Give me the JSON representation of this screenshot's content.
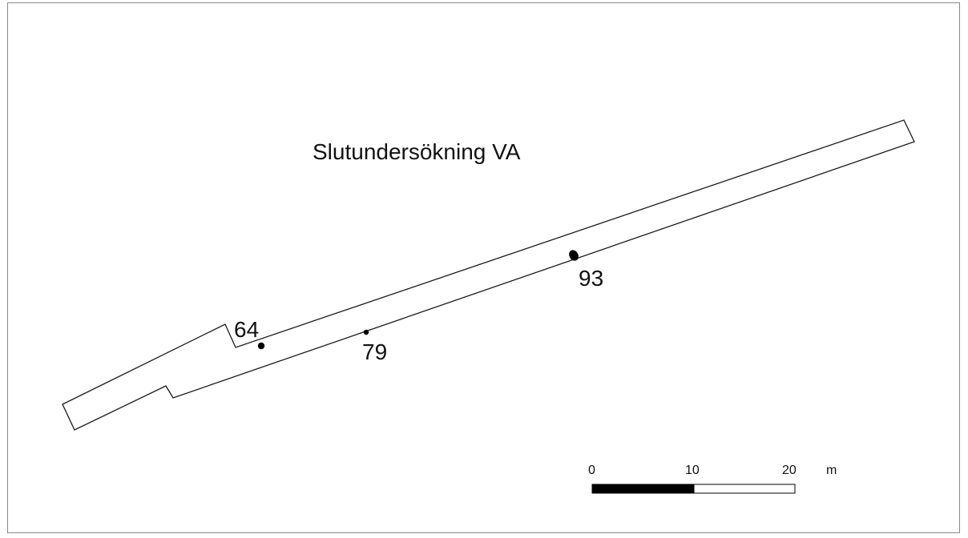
{
  "map": {
    "title": "Slutundersökning VA",
    "features": [
      {
        "id": "64",
        "label": "64"
      },
      {
        "id": "79",
        "label": "79"
      },
      {
        "id": "93",
        "label": "93"
      }
    ],
    "scale_bar": {
      "ticks": [
        "0",
        "10",
        "20"
      ],
      "unit": "m"
    }
  }
}
